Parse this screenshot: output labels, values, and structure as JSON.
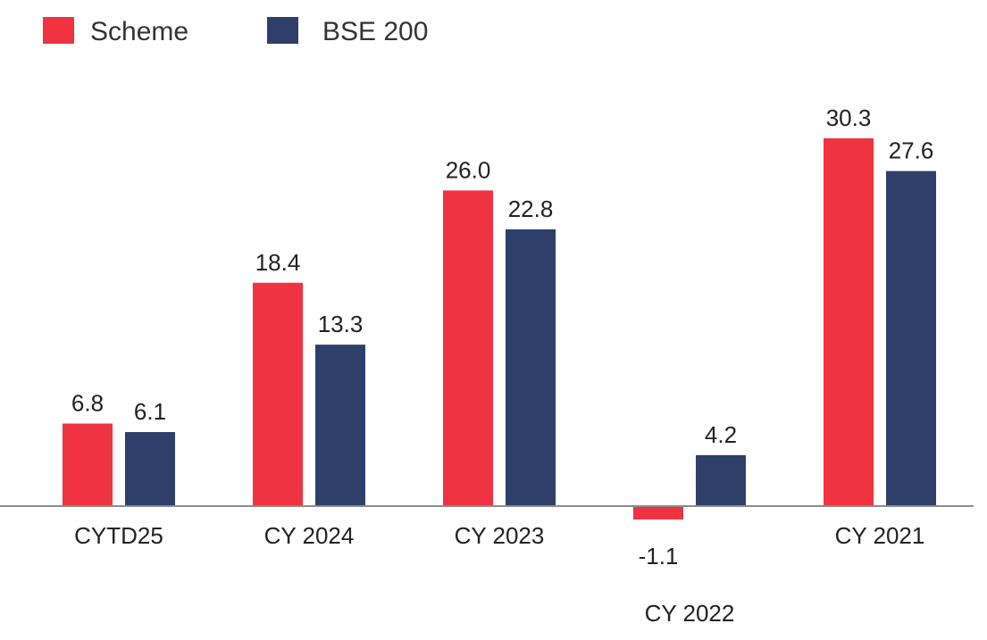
{
  "chart_data": {
    "type": "bar",
    "categories": [
      "CYTD25",
      "CY 2024",
      "CY 2023",
      "CY 2022",
      "CY 2021"
    ],
    "series": [
      {
        "name": "Scheme",
        "values": [
          6.8,
          18.4,
          26.0,
          -1.1,
          30.3
        ],
        "labels": [
          "6.8",
          "18.4",
          "26.0",
          "-1.1",
          "30.3"
        ],
        "color": "#EF3340"
      },
      {
        "name": "BSE 200",
        "values": [
          6.1,
          13.3,
          22.8,
          4.2,
          27.6
        ],
        "labels": [
          "6.1",
          "13.3",
          "22.8",
          "4.2",
          "27.6"
        ],
        "color": "#2E3F6A"
      }
    ],
    "title": "",
    "xlabel": "",
    "ylabel": "",
    "ylim": [
      -1.1,
      30.3
    ],
    "grid": false,
    "legend_position": "top-left",
    "axis_color": "#8C8C8C"
  }
}
